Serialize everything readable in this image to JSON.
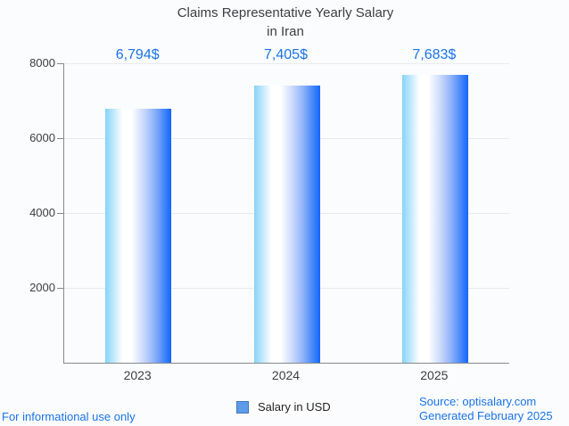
{
  "page": {
    "background": "#fbfcfe",
    "footer_left": "For informational use only",
    "source_line1": "Source: optisalary.com",
    "source_line2": "Generated February 2025"
  },
  "chart_data": {
    "type": "bar",
    "title_line1": "Claims Representative Yearly Salary",
    "title_line2": "in Iran",
    "categories": [
      "2023",
      "2024",
      "2025"
    ],
    "values": [
      6794,
      7405,
      7683
    ],
    "value_labels": [
      "6,794$",
      "7,405$",
      "7,683$"
    ],
    "series": [
      {
        "name": "Salary in USD",
        "values": [
          6794,
          7405,
          7683
        ]
      }
    ],
    "legend_label": "Salary in USD",
    "xlabel": "",
    "ylabel": "",
    "ylim": [
      0,
      8000
    ],
    "yticks": [
      2000,
      4000,
      6000,
      8000
    ],
    "grid": true,
    "legend_position": "bottom",
    "colors": {
      "accent_blue": "#1a73e8",
      "title": "#3c4043",
      "tick_label": "#3c4043",
      "axis_line": "#85898e",
      "gridline": "#e8eaed",
      "legend_marker_fill": "#5e9ce8",
      "legend_marker_border": "#4277bd",
      "bar_gradient_stops": [
        [
          "#86d3f9",
          "0%"
        ],
        [
          "#ffffff",
          "26%"
        ],
        [
          "#ffffff",
          "40%"
        ],
        [
          "#cbd9fb",
          "58%"
        ],
        [
          "#8fb3f9",
          "74%"
        ],
        [
          "#1167fb",
          "100%"
        ]
      ]
    }
  }
}
